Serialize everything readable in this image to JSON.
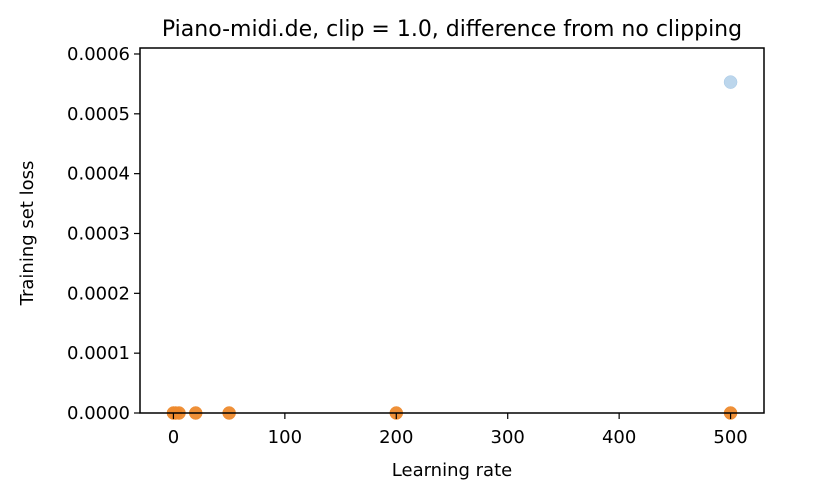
{
  "chart_data": {
    "type": "scatter",
    "title": "Piano-midi.de, clip = 1.0, difference from no clipping",
    "xlabel": "Learning rate",
    "ylabel": "Training set loss",
    "xlim": [
      -30,
      530
    ],
    "ylim": [
      0,
      0.00061
    ],
    "xticks": [
      0,
      100,
      200,
      300,
      400,
      500
    ],
    "xtick_labels": [
      "0",
      "100",
      "200",
      "300",
      "400",
      "500"
    ],
    "yticks": [
      0,
      0.0001,
      0.0002,
      0.0003,
      0.0004,
      0.0005,
      0.0006
    ],
    "ytick_labels": [
      "0.0000",
      "0.0001",
      "0.0002",
      "0.0003",
      "0.0004",
      "0.0005",
      "0.0006"
    ],
    "grid": false,
    "series": [
      {
        "color": "#a6c8e6",
        "points": [
          {
            "x": 500,
            "y": 0.000553
          }
        ]
      },
      {
        "color": "#ee8a2d",
        "points": [
          {
            "x": 0,
            "y": 0
          },
          {
            "x": 2,
            "y": 0
          },
          {
            "x": 5,
            "y": 0
          },
          {
            "x": 20,
            "y": 0
          },
          {
            "x": 50,
            "y": 0
          },
          {
            "x": 200,
            "y": 0
          },
          {
            "x": 500,
            "y": 0
          }
        ]
      }
    ]
  }
}
